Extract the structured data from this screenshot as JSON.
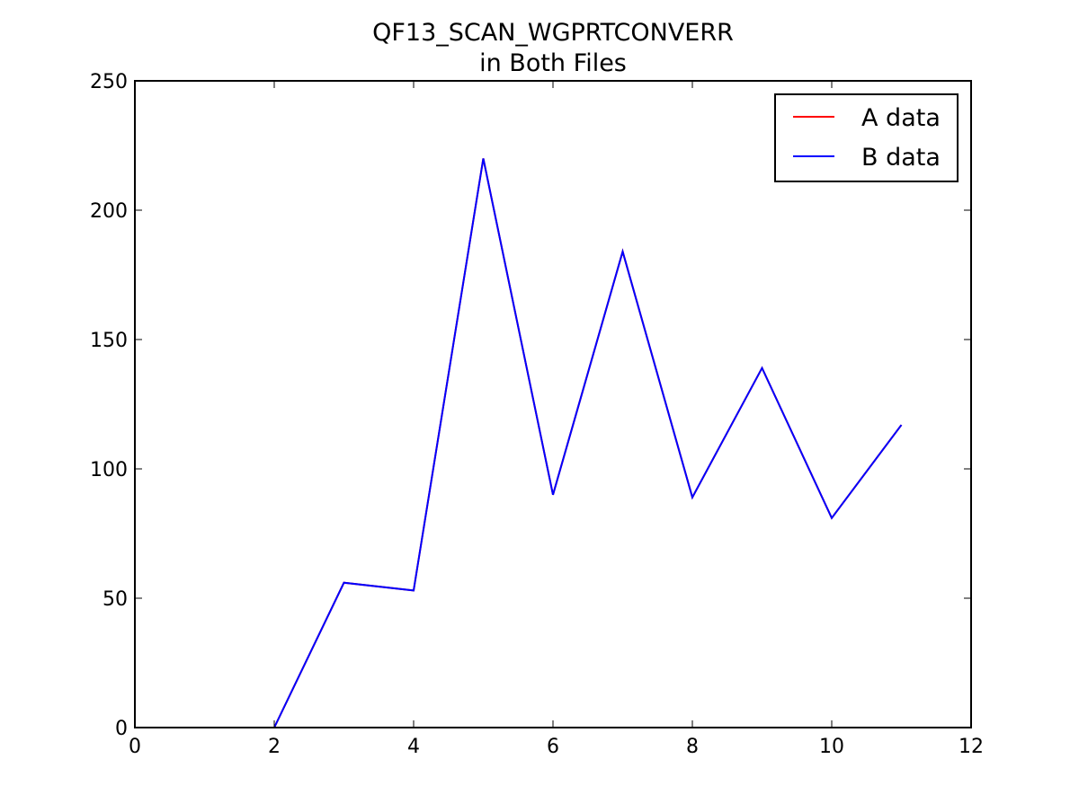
{
  "chart_data": {
    "type": "line",
    "title": "QF13_SCAN_WGPRTCONVERR",
    "subtitle": "in Both Files",
    "xlabel": "",
    "ylabel": "",
    "xlim": [
      0,
      12
    ],
    "ylim": [
      0,
      250
    ],
    "x_ticks": [
      0,
      2,
      4,
      6,
      8,
      10,
      12
    ],
    "y_ticks": [
      0,
      50,
      100,
      150,
      200,
      250
    ],
    "x_tick_labels": [
      "0",
      "2",
      "4",
      "6",
      "8",
      "10",
      "12"
    ],
    "y_tick_labels": [
      "0",
      "50",
      "100",
      "150",
      "200",
      "250"
    ],
    "grid": false,
    "legend_position": "top-right",
    "series": [
      {
        "name": "A data",
        "color": "#ff0000",
        "x": [
          0,
          1,
          2,
          3,
          4,
          5,
          6,
          7,
          8,
          9,
          10,
          11
        ],
        "y": [
          0,
          0,
          0,
          56,
          53,
          220,
          90,
          184,
          89,
          139,
          81,
          117
        ]
      },
      {
        "name": "B data",
        "color": "#0000ff",
        "x": [
          0,
          1,
          2,
          3,
          4,
          5,
          6,
          7,
          8,
          9,
          10,
          11
        ],
        "y": [
          0,
          0,
          0,
          56,
          53,
          220,
          90,
          184,
          89,
          139,
          81,
          117
        ]
      }
    ]
  }
}
